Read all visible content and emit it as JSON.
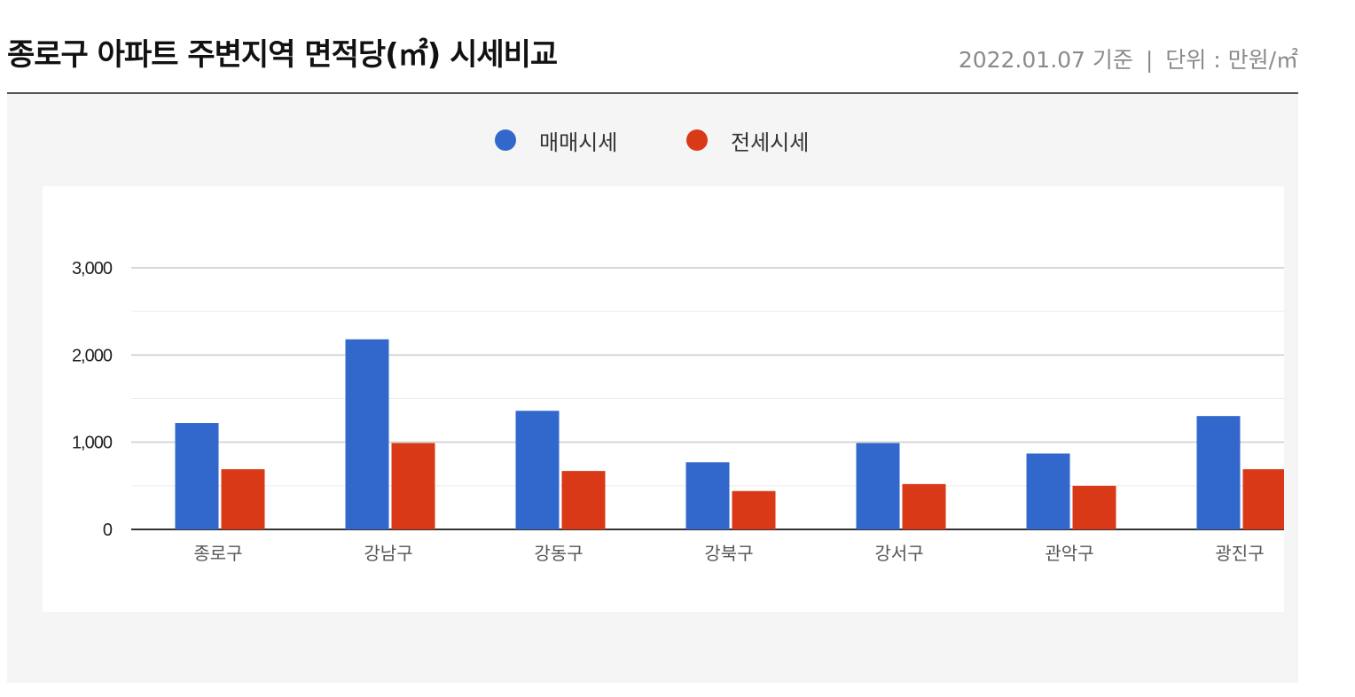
{
  "header": {
    "title": "종로구 아파트 주변지역 면적당(㎡) 시세비교",
    "date_label": "2022.01.07 기준",
    "separator": "|",
    "unit_label": "단위 : 만원/㎡"
  },
  "legend": [
    {
      "name": "매매시세",
      "color": "#3268cc"
    },
    {
      "name": "전세시세",
      "color": "#d93916"
    }
  ],
  "chart_data": {
    "type": "bar",
    "title": "종로구 아파트 주변지역 면적당(㎡) 시세비교",
    "xlabel": "",
    "ylabel": "",
    "categories": [
      "종로구",
      "강남구",
      "강동구",
      "강북구",
      "강서구",
      "관악구",
      "광진구"
    ],
    "series": [
      {
        "name": "매매시세",
        "color": "#3268cc",
        "values": [
          1220,
          2180,
          1360,
          770,
          990,
          870,
          1300
        ]
      },
      {
        "name": "전세시세",
        "color": "#d93916",
        "values": [
          690,
          990,
          670,
          440,
          520,
          500,
          690
        ]
      }
    ],
    "ylim": [
      0,
      3000
    ],
    "yticks": [
      0,
      1000,
      2000,
      3000
    ],
    "ytick_labels": [
      "0",
      "1,000",
      "2,000",
      "3,000"
    ],
    "grid": true,
    "legend_position": "top"
  }
}
